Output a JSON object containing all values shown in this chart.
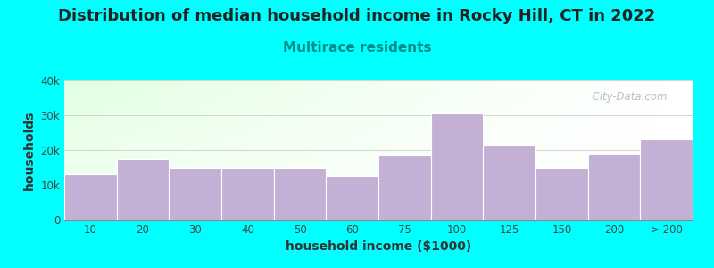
{
  "title": "Distribution of median household income in Rocky Hill, CT in 2022",
  "subtitle": "Multirace residents",
  "xlabel": "household income ($1000)",
  "ylabel": "households",
  "background_color": "#00FFFF",
  "bar_color": "#C4B0D5",
  "categories": [
    "10",
    "20",
    "30",
    "40",
    "50",
    "60",
    "75",
    "100",
    "125",
    "150",
    "200",
    "> 200"
  ],
  "values": [
    13000,
    17500,
    15000,
    15000,
    15000,
    12500,
    18500,
    30500,
    21500,
    15000,
    19000,
    23000
  ],
  "ylim": [
    0,
    40000
  ],
  "yticks": [
    0,
    10000,
    20000,
    30000,
    40000
  ],
  "ytick_labels": [
    "0",
    "10k",
    "20k",
    "30k",
    "40k"
  ],
  "title_fontsize": 13,
  "subtitle_fontsize": 11,
  "subtitle_color": "#008B8B",
  "axis_label_fontsize": 10,
  "watermark": "City-Data.com"
}
